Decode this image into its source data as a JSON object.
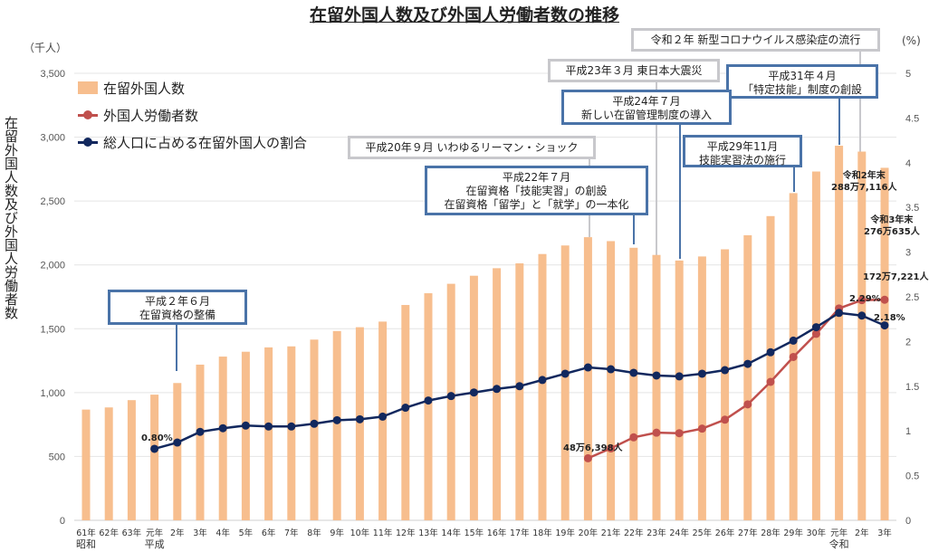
{
  "title": "在留外国人数及び外国人労働者数の推移",
  "left_unit": "（千人）",
  "right_unit": "(%)",
  "ylabel": "在留外国人数及び外国人労働者数",
  "legend": [
    "在留外国人数",
    "外国人労働者数",
    "総人口に占める在留外国人の割合"
  ],
  "colors": {
    "bars": "#f7be8e",
    "workers": "#c0504d",
    "ratio": "#12285e",
    "gray_box": "#c8c8cc",
    "blue_box": "#4a73a8"
  },
  "annotations": [
    {
      "text": "令和２年 新型コロナウイルス感染症の流行",
      "style": "gray"
    },
    {
      "text": "平成23年３月 東日本大震災",
      "style": "gray"
    },
    {
      "text": "平成31年４月\n「特定技能」制度の創設",
      "style": "blue"
    },
    {
      "text": "平成24年７月\n新しい在留管理制度の導入",
      "style": "blue"
    },
    {
      "text": "平成20年９月 いわゆるリーマン・ショック",
      "style": "gray"
    },
    {
      "text": "平成29年11月\n技能実習法の施行",
      "style": "blue"
    },
    {
      "text": "平成22年７月\n在留資格「技能実習」の創設\n在留資格「留学」と「就学」の一本化",
      "style": "blue"
    },
    {
      "text": "平成２年６月\n在留資格の整備",
      "style": "blue"
    }
  ],
  "data_labels": {
    "ratio_start": "0.80%",
    "workers_start": "48万6,398人",
    "workers_end": "172万7,221人",
    "ratio_r2": "2.29%",
    "ratio_r3": "2.18%",
    "r2_title": "令和2年末",
    "r2_value": "288万7,116人",
    "r3_title": "令和3年末",
    "r3_value": "276万635人"
  },
  "chart_data": {
    "type": "bar",
    "categories": [
      "61年",
      "62年",
      "63年",
      "元年",
      "2年",
      "3年",
      "4年",
      "5年",
      "6年",
      "7年",
      "8年",
      "9年",
      "10年",
      "11年",
      "12年",
      "13年",
      "14年",
      "15年",
      "16年",
      "17年",
      "18年",
      "19年",
      "20年",
      "21年",
      "22年",
      "23年",
      "24年",
      "25年",
      "26年",
      "27年",
      "28年",
      "29年",
      "30年",
      "元年",
      "2年",
      "3年"
    ],
    "era_labels": [
      {
        "index": 0,
        "text": "昭和"
      },
      {
        "index": 3,
        "text": "平成"
      },
      {
        "index": 33,
        "text": "令和"
      }
    ],
    "y_left": {
      "range": [
        0,
        3500
      ],
      "ticks": [
        "0",
        "500",
        "1,000",
        "1,500",
        "2,000",
        "2,500",
        "3,000",
        "3,500"
      ]
    },
    "y_right": {
      "range": [
        0,
        5
      ],
      "ticks": [
        "0",
        "0.5",
        "1",
        "1.5",
        "2",
        "2.5",
        "3",
        "3.5",
        "4",
        "4.5",
        "5"
      ]
    },
    "grid": true,
    "legend_position": "top-left",
    "series": [
      {
        "name": "在留外国人数",
        "type": "bar",
        "axis": "left",
        "values": [
          867,
          884,
          941,
          984,
          1075,
          1219,
          1282,
          1320,
          1354,
          1362,
          1415,
          1482,
          1512,
          1556,
          1686,
          1778,
          1852,
          1915,
          1974,
          2012,
          2085,
          2152,
          2217,
          2186,
          2134,
          2078,
          2034,
          2066,
          2122,
          2232,
          2382,
          2562,
          2731,
          2933,
          2887,
          2760
        ]
      },
      {
        "name": "外国人労働者数",
        "type": "line",
        "axis": "left",
        "values": [
          null,
          null,
          null,
          null,
          null,
          null,
          null,
          null,
          null,
          null,
          null,
          null,
          null,
          null,
          null,
          null,
          null,
          null,
          null,
          null,
          null,
          null,
          486,
          563,
          650,
          686,
          682,
          718,
          788,
          908,
          1084,
          1279,
          1460,
          1659,
          1724,
          1727
        ]
      },
      {
        "name": "総人口に占める在留外国人の割合",
        "type": "line",
        "axis": "right",
        "values": [
          null,
          null,
          null,
          0.8,
          0.87,
          0.99,
          1.03,
          1.06,
          1.05,
          1.05,
          1.08,
          1.12,
          1.13,
          1.16,
          1.26,
          1.34,
          1.39,
          1.43,
          1.47,
          1.5,
          1.57,
          1.64,
          1.71,
          1.69,
          1.65,
          1.62,
          1.61,
          1.64,
          1.68,
          1.75,
          1.88,
          2.01,
          2.16,
          2.32,
          2.29,
          2.18
        ]
      }
    ]
  }
}
